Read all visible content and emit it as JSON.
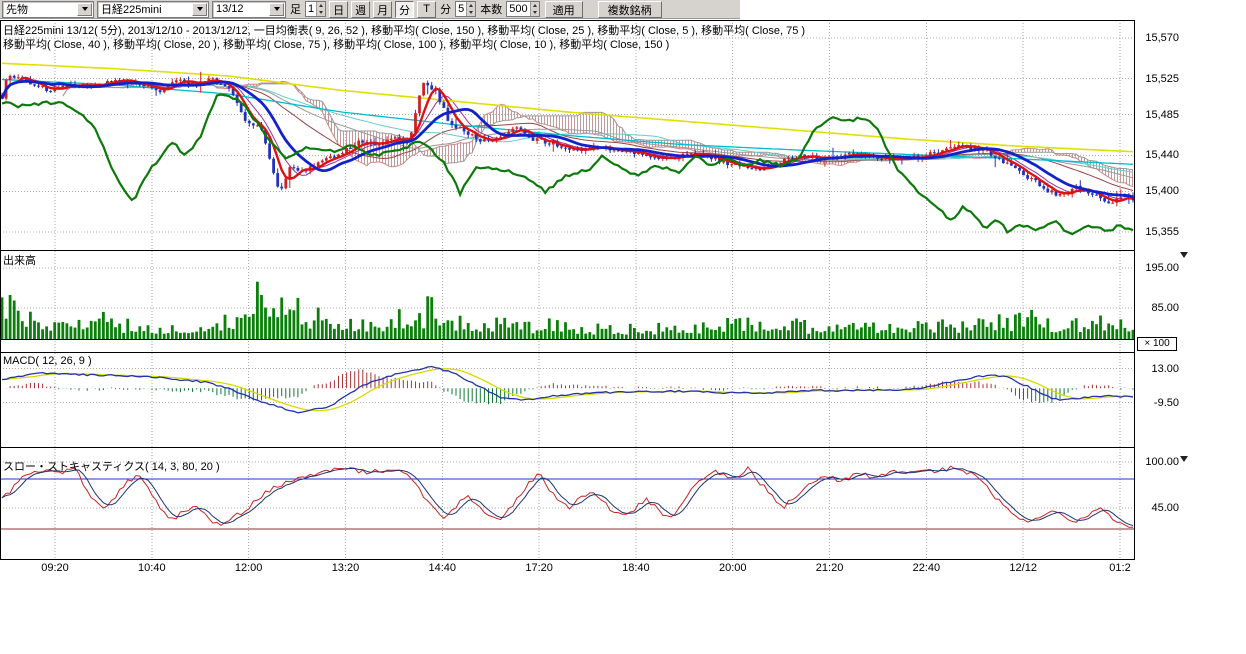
{
  "toolbar": {
    "instrument_type": "先物",
    "instrument": "日経225mini",
    "contract_month": "13/12",
    "ashi_label": "足",
    "ashi_value": "1",
    "period_buttons": [
      "日",
      "週",
      "月",
      "分",
      "T"
    ],
    "minute_label": "分",
    "minute_value": "5",
    "bars_label": "本数",
    "bars_value": "500",
    "apply_label": "適用",
    "multi_symbol_label": "複数銘柄"
  },
  "legend": {
    "line1": [
      "日経225mini 13/12( 5分)",
      "2013/12/10 - 2013/12/12",
      "一目均衡表( 9, 26, 52 )",
      "移動平均( Close, 150 )",
      "移動平均( Close, 25 )",
      "移動平均( Close, 5 )",
      "移動平均( Close, 75 )"
    ],
    "line2": [
      "移動平均( Close, 40 )",
      "移動平均( Close, 20 )",
      "移動平均( Close, 75 )",
      "移動平均( Close, 100 )",
      "移動平均( Close, 10 )",
      "移動平均( Close, 150 )"
    ]
  },
  "volume": {
    "title": "出来高",
    "multiplier_label": "× 100"
  },
  "macd": {
    "title": "MACD( 12, 26, 9 )"
  },
  "stoch": {
    "title": "スロー・ストキャスティクス( 14, 3, 80, 20 )"
  },
  "colors": {
    "candle_up": "#cc2222",
    "candle_down": "#2233bb",
    "ma_fast": "#dd1111",
    "ma_mid": "#1122cc",
    "overlay": "#0b7a0b",
    "ma_slow_yellow": "#e0e000",
    "ma_slow_cyan": "#00bbcc",
    "ma_thin_red": "#994444",
    "ma_thin_gray": "#999999",
    "ma_thin_purple": "#993399",
    "ma_thin_cyan": "#66cccc",
    "cloud_hatch": "#c49999",
    "volume_bar": "#0a800a",
    "macd_line": "#2233aa",
    "macd_signal": "#d9d900",
    "hist_pos": "#aa3333",
    "hist_neg": "#117733",
    "stoch_k": "#cc2222",
    "stoch_d": "#223377",
    "stoch_ob": "#2233cc",
    "stoch_os": "#883333",
    "grid": "#aaaaaa",
    "frame": "#000000",
    "toolbar_bg": "#d6d3ce"
  },
  "chart_data": {
    "type": "candlestick",
    "title": "日経225mini 13/12( 5分)",
    "date_range": "2013/12/10 - 2013/12/12",
    "render_bars": 280,
    "time_ticks": [
      "09:20",
      "10:40",
      "12:00",
      "13:20",
      "14:40",
      "17:20",
      "18:40",
      "20:00",
      "21:20",
      "22:40",
      "12/12",
      "01:2"
    ],
    "price_pane": {
      "ylim": [
        15335,
        15590
      ],
      "gridlines": [
        15570,
        15525,
        15485,
        15440,
        15400,
        15355
      ],
      "grid_labels": [
        "15,570",
        "15,525",
        "15,485",
        "15,440",
        "15,400",
        "15,355"
      ],
      "close_path": [
        [
          0,
          15505
        ],
        [
          0.005,
          15528
        ],
        [
          0.02,
          15524
        ],
        [
          0.04,
          15512
        ],
        [
          0.06,
          15518
        ],
        [
          0.08,
          15516
        ],
        [
          0.1,
          15524
        ],
        [
          0.12,
          15518
        ],
        [
          0.14,
          15512
        ],
        [
          0.155,
          15522
        ],
        [
          0.17,
          15519
        ],
        [
          0.185,
          15524
        ],
        [
          0.2,
          15516
        ],
        [
          0.215,
          15478
        ],
        [
          0.23,
          15468
        ],
        [
          0.245,
          15398
        ],
        [
          0.255,
          15428
        ],
        [
          0.265,
          15422
        ],
        [
          0.28,
          15432
        ],
        [
          0.3,
          15442
        ],
        [
          0.315,
          15456
        ],
        [
          0.33,
          15450
        ],
        [
          0.345,
          15460
        ],
        [
          0.36,
          15456
        ],
        [
          0.372,
          15522
        ],
        [
          0.383,
          15512
        ],
        [
          0.395,
          15478
        ],
        [
          0.41,
          15465
        ],
        [
          0.425,
          15455
        ],
        [
          0.44,
          15462
        ],
        [
          0.455,
          15470
        ],
        [
          0.47,
          15458
        ],
        [
          0.49,
          15452
        ],
        [
          0.51,
          15446
        ],
        [
          0.53,
          15450
        ],
        [
          0.55,
          15444
        ],
        [
          0.57,
          15440
        ],
        [
          0.59,
          15436
        ],
        [
          0.61,
          15442
        ],
        [
          0.63,
          15436
        ],
        [
          0.65,
          15428
        ],
        [
          0.67,
          15424
        ],
        [
          0.69,
          15434
        ],
        [
          0.71,
          15440
        ],
        [
          0.73,
          15436
        ],
        [
          0.75,
          15442
        ],
        [
          0.77,
          15438
        ],
        [
          0.79,
          15434
        ],
        [
          0.81,
          15438
        ],
        [
          0.83,
          15444
        ],
        [
          0.845,
          15452
        ],
        [
          0.86,
          15448
        ],
        [
          0.875,
          15442
        ],
        [
          0.89,
          15430
        ],
        [
          0.9,
          15420
        ],
        [
          0.91,
          15414
        ],
        [
          0.92,
          15404
        ],
        [
          0.93,
          15398
        ],
        [
          0.94,
          15396
        ],
        [
          0.95,
          15406
        ],
        [
          0.96,
          15400
        ],
        [
          0.97,
          15394
        ],
        [
          0.98,
          15388
        ],
        [
          0.99,
          15396
        ],
        [
          1,
          15392
        ]
      ],
      "overlay_green_path": [
        [
          0,
          15498
        ],
        [
          0.02,
          15494
        ],
        [
          0.05,
          15500
        ],
        [
          0.08,
          15476
        ],
        [
          0.1,
          15418
        ],
        [
          0.115,
          15388
        ],
        [
          0.13,
          15422
        ],
        [
          0.15,
          15456
        ],
        [
          0.162,
          15440
        ],
        [
          0.175,
          15458
        ],
        [
          0.19,
          15508
        ],
        [
          0.21,
          15502
        ],
        [
          0.23,
          15468
        ],
        [
          0.25,
          15438
        ],
        [
          0.27,
          15448
        ],
        [
          0.29,
          15444
        ],
        [
          0.31,
          15450
        ],
        [
          0.33,
          15440
        ],
        [
          0.35,
          15446
        ],
        [
          0.37,
          15456
        ],
        [
          0.39,
          15434
        ],
        [
          0.405,
          15398
        ],
        [
          0.42,
          15428
        ],
        [
          0.44,
          15424
        ],
        [
          0.46,
          15418
        ],
        [
          0.48,
          15400
        ],
        [
          0.5,
          15418
        ],
        [
          0.52,
          15424
        ],
        [
          0.53,
          15440
        ],
        [
          0.545,
          15428
        ],
        [
          0.56,
          15418
        ],
        [
          0.58,
          15428
        ],
        [
          0.6,
          15420
        ],
        [
          0.612,
          15440
        ],
        [
          0.625,
          15428
        ],
        [
          0.64,
          15436
        ],
        [
          0.655,
          15428
        ],
        [
          0.67,
          15434
        ],
        [
          0.69,
          15428
        ],
        [
          0.705,
          15438
        ],
        [
          0.72,
          15472
        ],
        [
          0.735,
          15482
        ],
        [
          0.75,
          15478
        ],
        [
          0.762,
          15482
        ],
        [
          0.775,
          15468
        ],
        [
          0.79,
          15428
        ],
        [
          0.8,
          15412
        ],
        [
          0.81,
          15400
        ],
        [
          0.82,
          15390
        ],
        [
          0.83,
          15378
        ],
        [
          0.84,
          15368
        ],
        [
          0.85,
          15384
        ],
        [
          0.86,
          15374
        ],
        [
          0.87,
          15358
        ],
        [
          0.88,
          15370
        ],
        [
          0.89,
          15354
        ],
        [
          0.9,
          15364
        ],
        [
          0.915,
          15358
        ],
        [
          0.93,
          15368
        ],
        [
          0.945,
          15352
        ],
        [
          0.96,
          15364
        ],
        [
          0.975,
          15356
        ],
        [
          0.99,
          15362
        ],
        [
          1,
          15356
        ]
      ],
      "ma_yellow_path": [
        [
          0,
          15542
        ],
        [
          0.1,
          15536
        ],
        [
          0.2,
          15528
        ],
        [
          0.3,
          15512
        ],
        [
          0.4,
          15500
        ],
        [
          0.5,
          15488
        ],
        [
          0.6,
          15478
        ],
        [
          0.7,
          15468
        ],
        [
          0.8,
          15458
        ],
        [
          0.9,
          15450
        ],
        [
          1,
          15444
        ]
      ],
      "ma_cyan_path": [
        [
          0,
          15524
        ],
        [
          0.1,
          15518
        ],
        [
          0.2,
          15508
        ],
        [
          0.3,
          15488
        ],
        [
          0.4,
          15474
        ],
        [
          0.5,
          15462
        ],
        [
          0.6,
          15452
        ],
        [
          0.7,
          15446
        ],
        [
          0.8,
          15441
        ],
        [
          0.9,
          15436
        ],
        [
          1,
          15430
        ]
      ]
    },
    "volume_pane": {
      "ylim": [
        0,
        245
      ],
      "gridlines": [
        195,
        85
      ],
      "grid_labels": [
        "195.00",
        "85.00"
      ],
      "envelope": [
        [
          0,
          130
        ],
        [
          0.01,
          155
        ],
        [
          0.03,
          70
        ],
        [
          0.06,
          45
        ],
        [
          0.09,
          85
        ],
        [
          0.11,
          60
        ],
        [
          0.14,
          35
        ],
        [
          0.17,
          45
        ],
        [
          0.2,
          65
        ],
        [
          0.22,
          135
        ],
        [
          0.24,
          190
        ],
        [
          0.26,
          120
        ],
        [
          0.28,
          90
        ],
        [
          0.3,
          70
        ],
        [
          0.32,
          75
        ],
        [
          0.34,
          55
        ],
        [
          0.36,
          95
        ],
        [
          0.38,
          115
        ],
        [
          0.4,
          65
        ],
        [
          0.43,
          45
        ],
        [
          0.45,
          85
        ],
        [
          0.47,
          55
        ],
        [
          0.5,
          48
        ],
        [
          0.53,
          38
        ],
        [
          0.56,
          46
        ],
        [
          0.59,
          42
        ],
        [
          0.62,
          46
        ],
        [
          0.65,
          85
        ],
        [
          0.67,
          48
        ],
        [
          0.7,
          55
        ],
        [
          0.73,
          48
        ],
        [
          0.76,
          58
        ],
        [
          0.79,
          52
        ],
        [
          0.82,
          58
        ],
        [
          0.85,
          52
        ],
        [
          0.87,
          78
        ],
        [
          0.89,
          60
        ],
        [
          0.91,
          72
        ],
        [
          0.93,
          56
        ],
        [
          0.95,
          62
        ],
        [
          0.97,
          66
        ],
        [
          0.99,
          72
        ],
        [
          1,
          52
        ]
      ]
    },
    "macd_pane": {
      "ylim": [
        -39,
        24
      ],
      "gridlines": [
        13,
        -9.5
      ],
      "grid_labels": [
        "13.00",
        "-9.50"
      ],
      "macd_path": [
        [
          0,
          6
        ],
        [
          0.03,
          10
        ],
        [
          0.06,
          9
        ],
        [
          0.1,
          8.5
        ],
        [
          0.14,
          7
        ],
        [
          0.18,
          4
        ],
        [
          0.2,
          0
        ],
        [
          0.23,
          -9
        ],
        [
          0.26,
          -16
        ],
        [
          0.29,
          -12
        ],
        [
          0.32,
          2
        ],
        [
          0.35,
          10
        ],
        [
          0.38,
          14
        ],
        [
          0.4,
          10
        ],
        [
          0.42,
          2
        ],
        [
          0.44,
          -6
        ],
        [
          0.46,
          -8
        ],
        [
          0.49,
          -5
        ],
        [
          0.52,
          -3
        ],
        [
          0.56,
          -2.5
        ],
        [
          0.6,
          -2
        ],
        [
          0.64,
          -3
        ],
        [
          0.68,
          -3
        ],
        [
          0.72,
          -1.5
        ],
        [
          0.76,
          -1.5
        ],
        [
          0.8,
          -1
        ],
        [
          0.82,
          1
        ],
        [
          0.85,
          6
        ],
        [
          0.875,
          9
        ],
        [
          0.89,
          7
        ],
        [
          0.91,
          0
        ],
        [
          0.93,
          -7
        ],
        [
          0.94,
          -8
        ],
        [
          0.96,
          -6
        ],
        [
          0.98,
          -5
        ],
        [
          1,
          -6
        ]
      ]
    },
    "stoch_pane": {
      "ylim": [
        -17,
        118
      ],
      "gridlines": [
        100,
        45
      ],
      "grid_labels": [
        "100.00",
        "45.00"
      ],
      "overbought": 80,
      "oversold": 20,
      "k_path": [
        [
          0,
          55
        ],
        [
          0.02,
          85
        ],
        [
          0.035,
          90
        ],
        [
          0.05,
          88
        ],
        [
          0.065,
          92
        ],
        [
          0.08,
          55
        ],
        [
          0.09,
          42
        ],
        [
          0.11,
          75
        ],
        [
          0.12,
          85
        ],
        [
          0.14,
          45
        ],
        [
          0.15,
          30
        ],
        [
          0.17,
          50
        ],
        [
          0.19,
          25
        ],
        [
          0.21,
          38
        ],
        [
          0.24,
          70
        ],
        [
          0.27,
          85
        ],
        [
          0.3,
          92
        ],
        [
          0.32,
          88
        ],
        [
          0.34,
          90
        ],
        [
          0.36,
          86
        ],
        [
          0.375,
          55
        ],
        [
          0.39,
          32
        ],
        [
          0.41,
          60
        ],
        [
          0.43,
          35
        ],
        [
          0.44,
          28
        ],
        [
          0.46,
          65
        ],
        [
          0.475,
          88
        ],
        [
          0.49,
          55
        ],
        [
          0.5,
          45
        ],
        [
          0.52,
          65
        ],
        [
          0.54,
          42
        ],
        [
          0.55,
          35
        ],
        [
          0.57,
          55
        ],
        [
          0.585,
          38
        ],
        [
          0.59,
          30
        ],
        [
          0.61,
          70
        ],
        [
          0.63,
          90
        ],
        [
          0.645,
          80
        ],
        [
          0.66,
          92
        ],
        [
          0.68,
          60
        ],
        [
          0.69,
          45
        ],
        [
          0.71,
          70
        ],
        [
          0.73,
          85
        ],
        [
          0.74,
          78
        ],
        [
          0.76,
          88
        ],
        [
          0.77,
          80
        ],
        [
          0.79,
          90
        ],
        [
          0.81,
          88
        ],
        [
          0.83,
          90
        ],
        [
          0.84,
          93
        ],
        [
          0.86,
          85
        ],
        [
          0.87,
          75
        ],
        [
          0.88,
          55
        ],
        [
          0.9,
          32
        ],
        [
          0.91,
          28
        ],
        [
          0.93,
          42
        ],
        [
          0.94,
          35
        ],
        [
          0.95,
          28
        ],
        [
          0.97,
          45
        ],
        [
          0.98,
          35
        ],
        [
          0.99,
          25
        ],
        [
          1,
          22
        ]
      ]
    }
  }
}
